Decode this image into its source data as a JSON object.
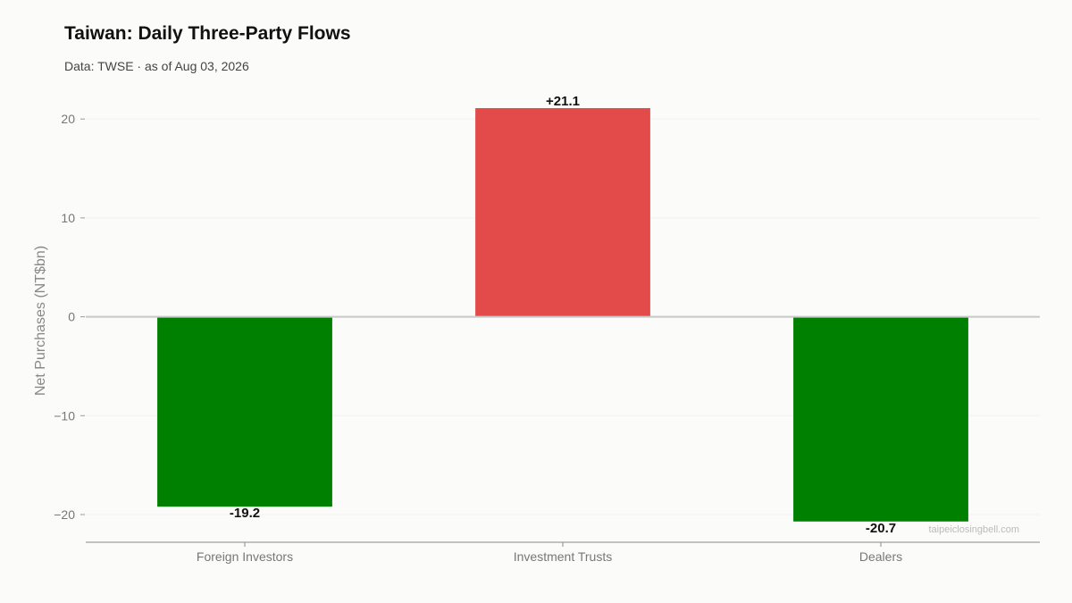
{
  "header": {
    "title": "Taiwan: Daily Three-Party Flows",
    "subtitle": "Data: TWSE · as of Aug 03, 2026"
  },
  "watermark": "taipeiclosingbell.com",
  "colors": {
    "positive": "#e34b4b",
    "negative": "#008000",
    "zero_line": "#c8c8c8",
    "grid": "#f1f1ee",
    "axis": "#888888"
  },
  "chart_data": {
    "type": "bar",
    "title": "Taiwan: Daily Three-Party Flows",
    "subtitle": "Data: TWSE · as of Aug 03, 2026",
    "xlabel": "",
    "ylabel": "Net Purchases (NT$bn)",
    "categories": [
      "Foreign Investors",
      "Investment Trusts",
      "Dealers"
    ],
    "values": [
      -19.2,
      21.1,
      -20.7
    ],
    "data_labels": [
      "-19.2",
      "+21.1",
      "-20.7"
    ],
    "ylim": [
      -22.8,
      23
    ],
    "yticks": [
      -20,
      -10,
      0,
      10,
      20
    ],
    "ytick_labels": [
      "−20",
      "−10",
      "0",
      "10",
      "20"
    ],
    "grid": true,
    "legend": "none"
  }
}
